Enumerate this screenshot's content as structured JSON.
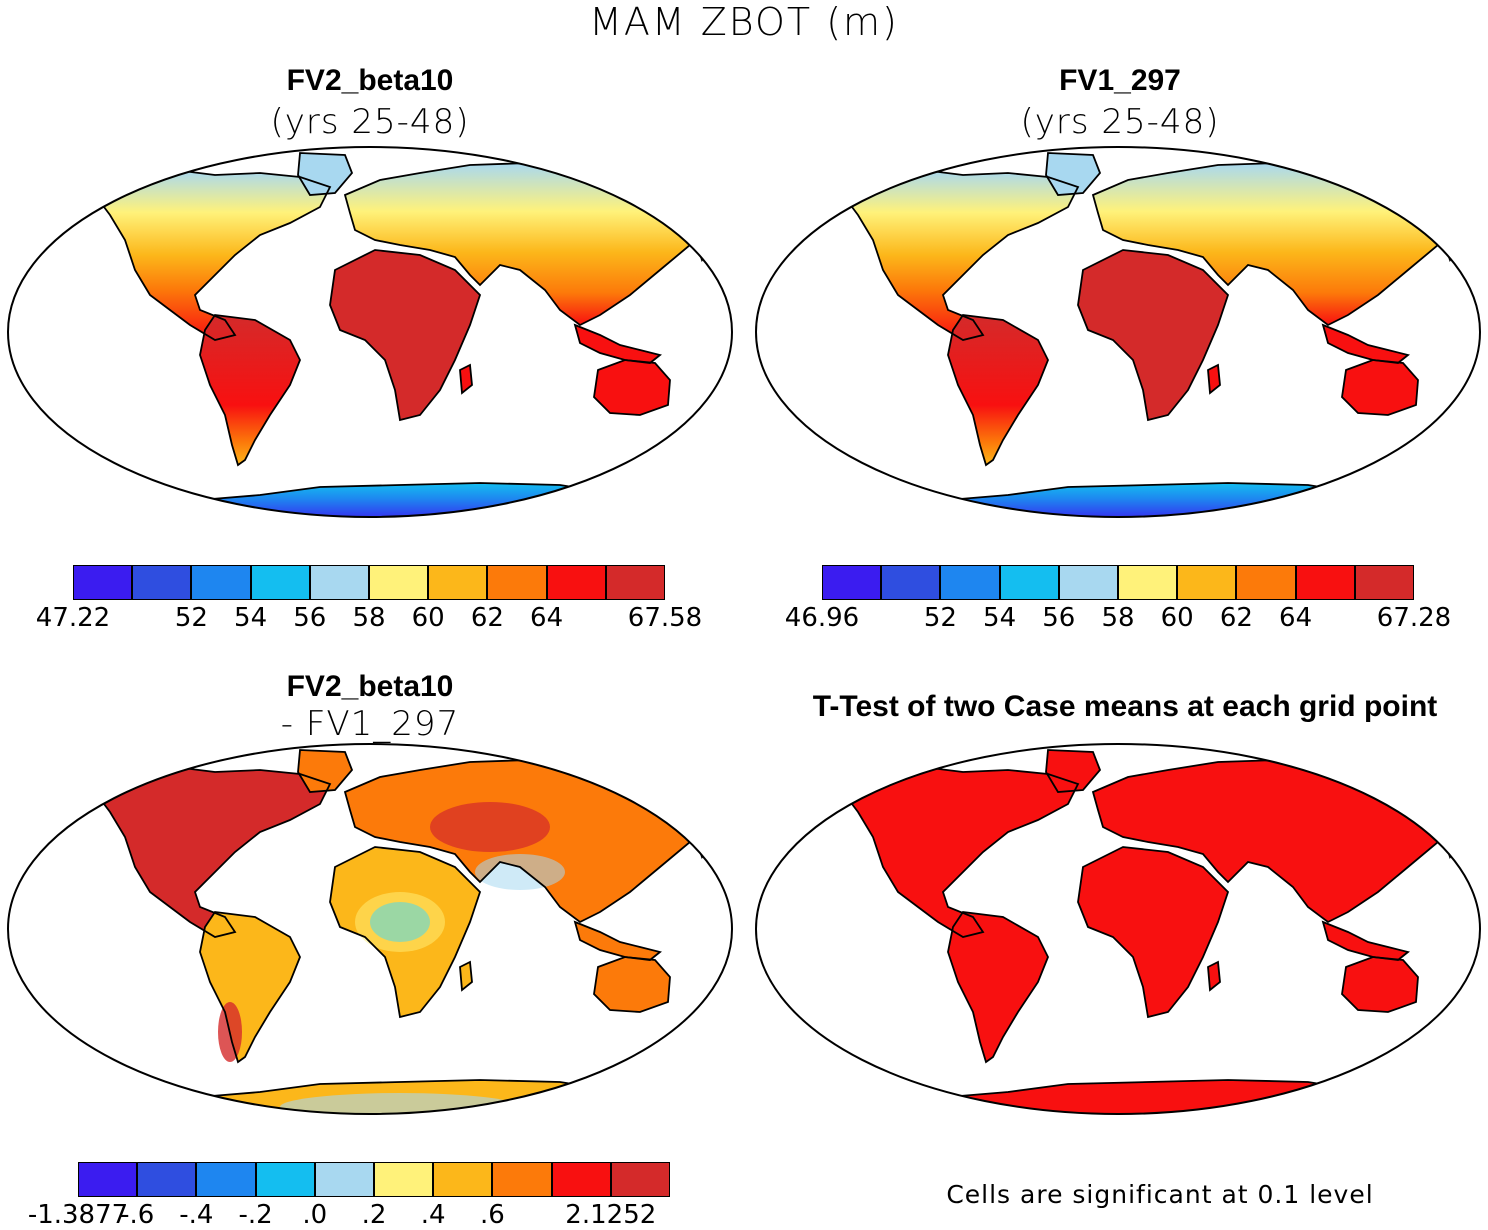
{
  "title": "MAM ZBOT (m)",
  "panels": [
    {
      "id": "fv2",
      "title": "FV2_beta10",
      "subtitle": "(yrs 25-48)",
      "colorbar": {
        "colors": [
          "#3b1cf0",
          "#2f4ee0",
          "#1e86f0",
          "#14bef0",
          "#a8d8f0",
          "#fff27a",
          "#fcb71a",
          "#fc7a0a",
          "#f81010",
          "#d42a2a"
        ],
        "labels": [
          "47.22",
          "",
          "52",
          "54",
          "56",
          "58",
          "60",
          "62",
          "64",
          "",
          "67.58"
        ]
      }
    },
    {
      "id": "fv1",
      "title": "FV1_297",
      "subtitle": "(yrs 25-48)",
      "colorbar": {
        "colors": [
          "#3b1cf0",
          "#2f4ee0",
          "#1e86f0",
          "#14bef0",
          "#a8d8f0",
          "#fff27a",
          "#fcb71a",
          "#fc7a0a",
          "#f81010",
          "#d42a2a"
        ],
        "labels": [
          "46.96",
          "",
          "52",
          "54",
          "56",
          "58",
          "60",
          "62",
          "64",
          "",
          "67.28"
        ]
      }
    },
    {
      "id": "diff",
      "title": "FV2_beta10",
      "subtitle": "- FV1_297",
      "colorbar": {
        "colors": [
          "#3b1cf0",
          "#2f4ee0",
          "#1e86f0",
          "#14bef0",
          "#a8d8f0",
          "#fff27a",
          "#fcb71a",
          "#fc7a0a",
          "#f81010",
          "#d42a2a"
        ],
        "labels": [
          "-1.3877",
          "-.6",
          "-.4",
          "-.2",
          ".0",
          ".2",
          ".4",
          ".6",
          "",
          "2.1252"
        ]
      }
    },
    {
      "id": "ttest",
      "title": "T-Test of two Case means at each grid point",
      "note": "Cells are significant at 0.1 level"
    }
  ]
}
